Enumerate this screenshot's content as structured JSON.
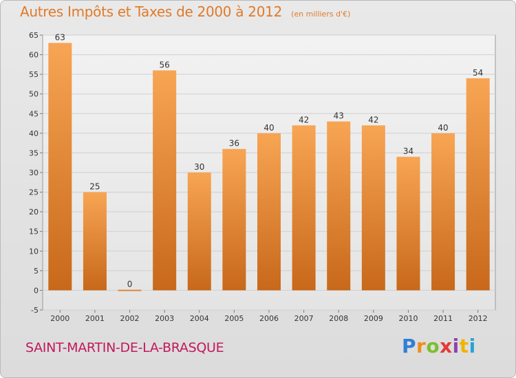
{
  "header": {
    "title": "Autres Impôts et Taxes de 2000 à 2012",
    "subtitle": "(en milliers d'€)"
  },
  "footer": {
    "place": "SAINT-MARTIN-DE-LA-BRASQUE",
    "brand_letters": [
      "P",
      "r",
      "o",
      "x",
      "i",
      "t",
      "i"
    ],
    "brand_colors": [
      "#2f7fd6",
      "#f08c1e",
      "#7cbf2e",
      "#e53935",
      "#8e44ad",
      "#f0b400",
      "#29a3d9"
    ]
  },
  "colors": {
    "title": "#e07a2a",
    "place": "#c2185b",
    "bar_top": "#f7a554",
    "bar_bottom": "#c8681a",
    "axis_text": "#333333",
    "grid": "#cfcfcf"
  },
  "chart_data": {
    "type": "bar",
    "title": "Autres Impôts et Taxes de 2000 à 2012",
    "subtitle": "(en milliers d'€)",
    "categories": [
      "2000",
      "2001",
      "2002",
      "2003",
      "2004",
      "2005",
      "2006",
      "2007",
      "2008",
      "2009",
      "2010",
      "2011",
      "2012"
    ],
    "values": [
      63,
      25,
      0,
      56,
      30,
      36,
      40,
      42,
      43,
      42,
      34,
      40,
      54
    ],
    "data_labels": [
      "63",
      "25",
      "0",
      "56",
      "30",
      "36",
      "40",
      "42",
      "43",
      "42",
      "34",
      "40",
      "54"
    ],
    "ylim": [
      -5,
      65
    ],
    "yticks": [
      -5,
      0,
      5,
      10,
      15,
      20,
      25,
      30,
      35,
      40,
      45,
      50,
      55,
      60,
      65
    ],
    "grid": true
  }
}
